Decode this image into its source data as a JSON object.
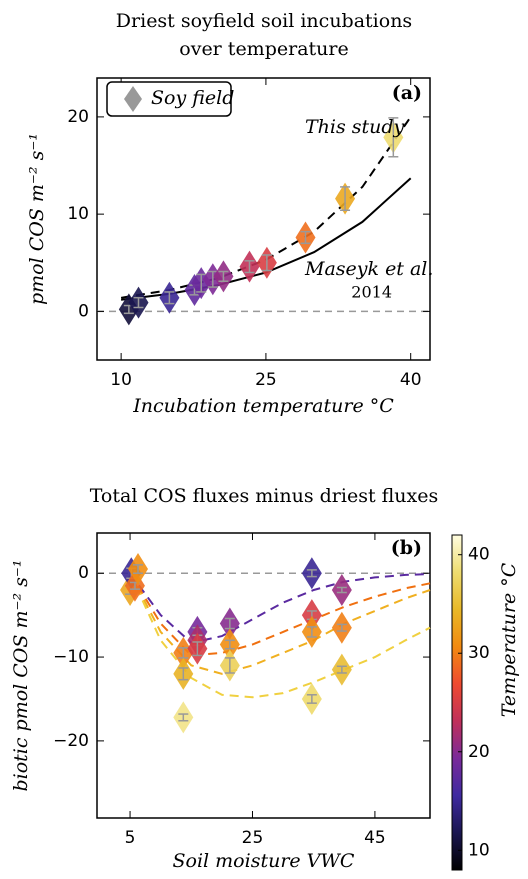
{
  "chart_data": [
    {
      "type": "scatter",
      "title": [
        "Driest soyfield soil incubations",
        "over temperature"
      ],
      "xlabel": "Incubation temperature °C",
      "ylabel": "pmol COS  m⁻² s⁻¹",
      "panel_label": "(a)",
      "xlim": [
        7.5,
        42
      ],
      "xticks": [
        10,
        25,
        40
      ],
      "ylim": [
        -5,
        24
      ],
      "yticks": [
        0,
        10,
        20
      ],
      "legend": {
        "loc": "upper left",
        "color": "#999999"
      },
      "hline": {
        "value": 0,
        "color": "#999999"
      },
      "colormap": {
        "clim": [
          8,
          42
        ],
        "colors": [
          "#000000",
          "#1a1650",
          "#3f2aa0",
          "#7a2a9a",
          "#c0305a",
          "#ee4a30",
          "#f28a10",
          "#e8b828",
          "#eedc70",
          "#fffde0"
        ]
      },
      "series": [
        {
          "name": "Soy field",
          "x": [
            10.8,
            11.8,
            15,
            17.6,
            18.3,
            19.5,
            20.6,
            23.3,
            25.1,
            29.1,
            33.2,
            38.2
          ],
          "values": [
            0.2,
            0.9,
            1.4,
            2.2,
            2.9,
            3.3,
            3.6,
            4.6,
            5.0,
            7.6,
            11.6,
            17.9
          ],
          "errors": [
            0.4,
            0.5,
            0.6,
            0.5,
            0.9,
            0.8,
            0.5,
            0.6,
            0.8,
            0.6,
            1.2,
            2.0
          ]
        }
      ],
      "lines": [
        {
          "label": [
            "This study"
          ],
          "color": "#000000",
          "dashed": true,
          "x": [
            10,
            15,
            20,
            25,
            30,
            35,
            40
          ],
          "values": [
            1.4,
            2.2,
            3.4,
            5.3,
            8.2,
            12.8,
            20
          ]
        },
        {
          "label": [
            "Maseyk et al.",
            "2014"
          ],
          "color": "#000000",
          "dashed": false,
          "x": [
            10,
            15,
            20,
            25,
            30,
            35,
            40
          ],
          "values": [
            1.2,
            1.8,
            2.7,
            4.0,
            6.1,
            9.2,
            13.7
          ]
        }
      ]
    },
    {
      "type": "scatter",
      "title": [
        "Total COS fluxes minus driest fluxes"
      ],
      "xlabel": "Soil moisture VWC",
      "ylabel": "biotic pmol COS  m⁻² s⁻¹",
      "panel_label": "(b)",
      "xlim": [
        -0.4,
        54
      ],
      "xticks": [
        5,
        25,
        45
      ],
      "ylim": [
        -29.2,
        4.8
      ],
      "yticks": [
        0,
        {
          "value": -10,
          "label": "−10"
        },
        {
          "value": -20,
          "label": "−20"
        }
      ],
      "hline": {
        "value": 0,
        "color": "#999999"
      },
      "colorbar": {
        "label": "Temperature °C",
        "ticks": [
          10,
          20,
          30,
          40
        ]
      },
      "colormap": {
        "clim": [
          8,
          42
        ],
        "colors": [
          "#000000",
          "#1a1650",
          "#3f2aa0",
          "#7a2a9a",
          "#c0305a",
          "#ee4a30",
          "#f28a10",
          "#e8b828",
          "#eedc70",
          "#fffde0"
        ]
      },
      "series": [
        {
          "name": "Soy field",
          "x": [
            5.0,
            5.2,
            5.8,
            6.3,
            13.7,
            13.7,
            13.7,
            16,
            16,
            16,
            21.3,
            21.3,
            21.3,
            34.7,
            34.7,
            34.7,
            34.7,
            39.6,
            39.6,
            39.6
          ],
          "values": [
            -2,
            0,
            -1.5,
            0.5,
            -9.5,
            -12,
            -17.2,
            -7,
            -8,
            -9,
            -6,
            -8.5,
            -11,
            0,
            -5,
            -7,
            -15,
            -2,
            -6.5,
            -11.5
          ],
          "temperatures": [
            33,
            15,
            29,
            31,
            30,
            34,
            39,
            19,
            22,
            25,
            20,
            31,
            37,
            15,
            25,
            31,
            38,
            21,
            30,
            35
          ],
          "errors": [
            0.5,
            0.6,
            0.4,
            0.5,
            0.6,
            0.7,
            0.4,
            0.5,
            0.6,
            0.8,
            0.6,
            0.5,
            0.9,
            0.4,
            0.5,
            0.6,
            0.5,
            0.3,
            0.4,
            0.4
          ]
        }
      ],
      "lines": [
        {
          "color": "#5a2aa0",
          "dashed": true,
          "x": [
            5,
            10,
            15,
            20,
            25,
            30,
            35,
            40,
            45,
            50,
            54
          ],
          "values": [
            0,
            -5,
            -8.3,
            -7.5,
            -5.5,
            -3.5,
            -2.0,
            -1.0,
            -0.5,
            -0.2,
            -0.1
          ]
        },
        {
          "color": "#f07010",
          "dashed": true,
          "x": [
            5,
            10,
            15,
            20,
            25,
            30,
            35,
            40,
            45,
            50,
            54
          ],
          "values": [
            0,
            -6,
            -9.8,
            -9.5,
            -8.5,
            -7,
            -5.5,
            -4,
            -2.8,
            -1.8,
            -1.2
          ]
        },
        {
          "color": "#f0b020",
          "dashed": true,
          "x": [
            5,
            10,
            15,
            20,
            25,
            30,
            35,
            40,
            45,
            50,
            54
          ],
          "values": [
            0,
            -7,
            -11,
            -12,
            -11,
            -9.5,
            -8,
            -6,
            -4.5,
            -3,
            -2
          ]
        },
        {
          "color": "#f0d040",
          "dashed": true,
          "x": [
            5,
            10,
            15,
            20,
            25,
            30,
            35,
            40,
            45,
            50,
            54
          ],
          "values": [
            0,
            -8,
            -12.5,
            -14.5,
            -14.8,
            -14.3,
            -13,
            -11.5,
            -10,
            -8,
            -6.5
          ]
        }
      ]
    }
  ]
}
